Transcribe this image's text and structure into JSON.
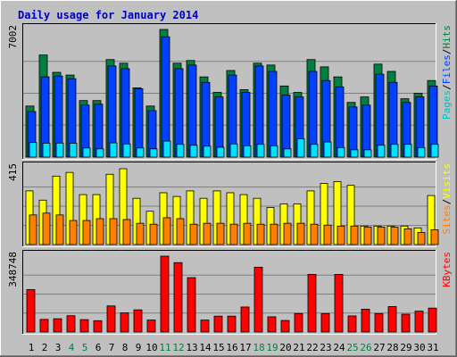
{
  "chart_data": {
    "type": "bar",
    "title": "Daily usage for January 2014",
    "categories": [
      "1",
      "2",
      "3",
      "4",
      "5",
      "6",
      "7",
      "8",
      "9",
      "10",
      "11",
      "12",
      "13",
      "14",
      "15",
      "16",
      "17",
      "18",
      "19",
      "20",
      "21",
      "22",
      "23",
      "24",
      "25",
      "26",
      "27",
      "28",
      "29",
      "30",
      "31"
    ],
    "weekend_days": [
      4,
      5,
      11,
      12,
      18,
      19,
      25,
      26
    ],
    "panels": [
      {
        "name": "top",
        "ymax": 7002,
        "ylabel": "7002",
        "legend": [
          {
            "text": "Pages",
            "color": "#00c0c0"
          },
          {
            "text": "/",
            "color": "#000000"
          },
          {
            "text": "Files",
            "color": "#0040ff"
          },
          {
            "text": "/",
            "color": "#000000"
          },
          {
            "text": "Hits",
            "color": "#008040"
          }
        ],
        "series": [
          {
            "name": "Hits",
            "color": "#008040",
            "values": [
              2800,
              5600,
              4650,
              4500,
              3100,
              3100,
              5350,
              5150,
              3800,
              2800,
              7002,
              5150,
              5300,
              4400,
              3550,
              4750,
              3700,
              5150,
              5050,
              3900,
              3550,
              5350,
              4950,
              4400,
              3000,
              3300,
              5100,
              4700,
              3200,
              3500,
              4200
            ]
          },
          {
            "name": "Files",
            "color": "#0040ff",
            "values": [
              2500,
              4400,
              4450,
              4300,
              2850,
              2900,
              5000,
              4850,
              3750,
              2550,
              6600,
              4850,
              5050,
              4100,
              3300,
              4500,
              3550,
              5000,
              4700,
              3400,
              3300,
              4700,
              4200,
              3850,
              2750,
              2850,
              4550,
              4100,
              3000,
              3300,
              3900
            ]
          },
          {
            "name": "Pages",
            "color": "#00e0ff",
            "values": [
              800,
              760,
              770,
              760,
              500,
              450,
              780,
              720,
              500,
              450,
              880,
              700,
              650,
              600,
              540,
              720,
              620,
              700,
              620,
              450,
              1000,
              700,
              830,
              520,
              400,
              400,
              650,
              700,
              700,
              520,
              700
            ]
          }
        ]
      },
      {
        "name": "middle",
        "ymax": 415,
        "ylabel": "415",
        "legend": [
          {
            "text": "Sites",
            "color": "#ff8000"
          },
          {
            "text": "/",
            "color": "#000000"
          },
          {
            "text": "Visits",
            "color": "#ffff00"
          }
        ],
        "series": [
          {
            "name": "Visits",
            "color": "#ffff00",
            "values": [
              290,
              240,
              370,
              390,
              270,
              270,
              380,
              410,
              250,
              180,
              280,
              260,
              290,
              250,
              290,
              280,
              270,
              250,
              200,
              220,
              220,
              290,
              330,
              340,
              320,
              100,
              100,
              100,
              100,
              90,
              265
            ]
          },
          {
            "name": "Sites",
            "color": "#ff8000",
            "values": [
              160,
              170,
              160,
              130,
              130,
              140,
              140,
              135,
              115,
              110,
              145,
              140,
              110,
              115,
              115,
              110,
              115,
              110,
              110,
              115,
              115,
              110,
              105,
              100,
              100,
              95,
              95,
              95,
              85,
              65,
              80
            ]
          }
        ]
      },
      {
        "name": "bottom",
        "ymax": 348748,
        "ylabel": "348748",
        "legend": [
          {
            "text": "KBytes",
            "color": "#ff0000"
          }
        ],
        "series": [
          {
            "name": "KBytes",
            "color": "#ff0000",
            "values": [
              195000,
              58000,
              61000,
              75000,
              57000,
              52000,
              120000,
              88000,
              102000,
              55000,
              348748,
              319000,
              250000,
              55000,
              73000,
              73000,
              115000,
              298000,
              70000,
              53000,
              85000,
              265000,
              85000,
              265000,
              74000,
              105000,
              85000,
              117000,
              82000,
              96000,
              110000
            ]
          }
        ]
      }
    ]
  }
}
